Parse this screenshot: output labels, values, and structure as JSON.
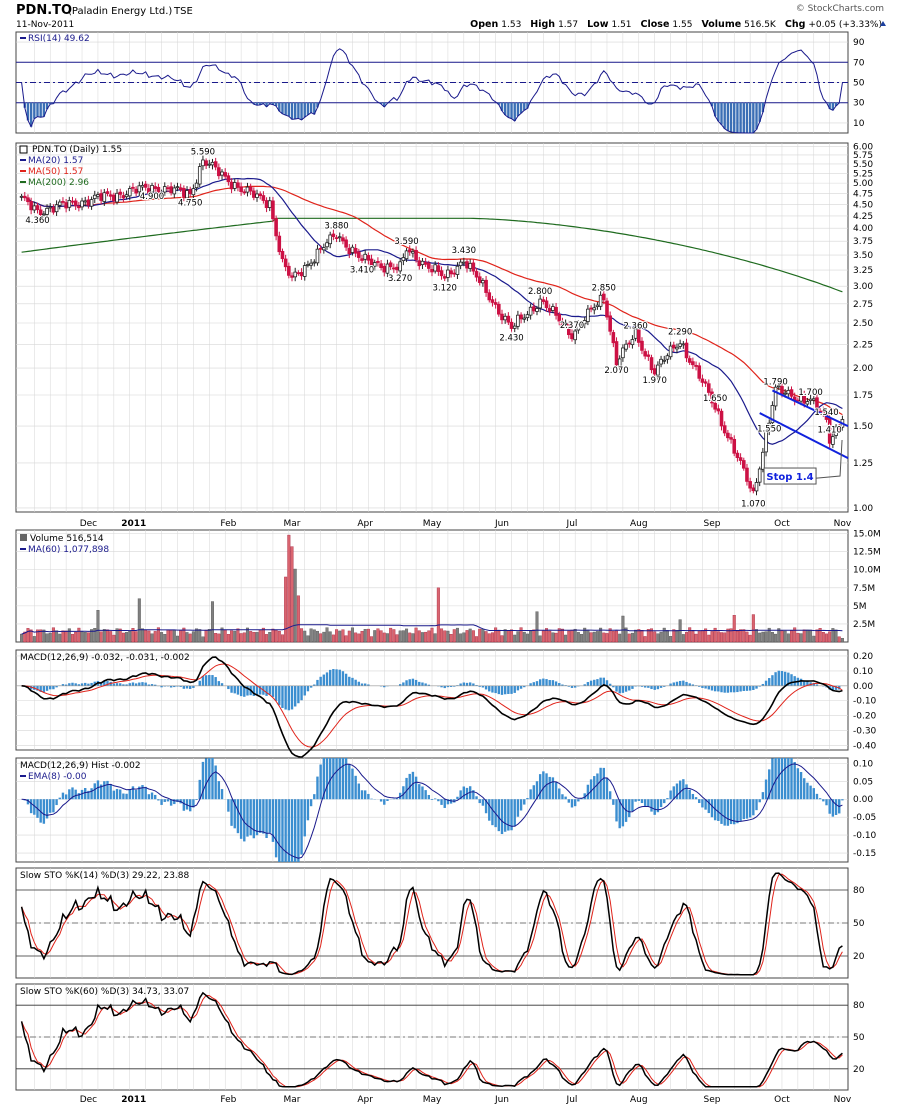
{
  "header": {
    "symbol": "PDN.TO",
    "company": "(Paladin Energy Ltd.)",
    "exchange": "TSE",
    "date": "11-Nov-2011",
    "brand": "© StockCharts.com",
    "stats": [
      {
        "label": "Open",
        "value": "1.53"
      },
      {
        "label": "High",
        "value": "1.57"
      },
      {
        "label": "Low",
        "value": "1.51"
      },
      {
        "label": "Close",
        "value": "1.55"
      },
      {
        "label": "Volume",
        "value": "516.5K"
      },
      {
        "label": "Chg",
        "value": "+0.05 (+3.33%)"
      }
    ]
  },
  "colors": {
    "up": "#222222",
    "down": "#cc1144",
    "ma20": "#1a1a8c",
    "ma50": "#e0241b",
    "ma200": "#1f6b1f",
    "hist": "#3b8ed0",
    "grid": "#d6d6d6",
    "channel": "#1122dd"
  },
  "x_months": [
    "Dec",
    "2011",
    "Feb",
    "Mar",
    "Apr",
    "May",
    "Jun",
    "Jul",
    "Aug",
    "Sep",
    "Oct",
    "Nov"
  ],
  "chart_data": [
    {
      "type": "line",
      "id": "rsi",
      "legend": [
        "RSI(14) 49.62"
      ],
      "yticks": [
        10,
        30,
        50,
        70,
        90
      ],
      "ylim": [
        0,
        100
      ],
      "reference_lines": [
        30,
        50,
        70
      ],
      "last_value": 49.62
    },
    {
      "type": "candlestick",
      "id": "price",
      "title": "PDN.TO (Daily) 1.55",
      "legend": [
        {
          "label": "MA(20) 1.57",
          "color": "ma20"
        },
        {
          "label": "MA(50) 1.57",
          "color": "ma50"
        },
        {
          "label": "MA(200) 2.96",
          "color": "ma200"
        }
      ],
      "yticks": [
        "6.00",
        "5.75",
        "5.50",
        "5.25",
        "5.00",
        "4.75",
        "4.50",
        "4.25",
        "4.00",
        "3.75",
        "3.50",
        "3.25",
        "3.00",
        "2.75",
        "2.50",
        "2.25",
        "2.00",
        "1.75",
        "1.50",
        "1.25",
        "1.00"
      ],
      "scale": "log",
      "ylim": [
        0.98,
        6.1
      ],
      "annotations": [
        "4.360",
        "5.590",
        "4.900",
        "4.750",
        "3.880",
        "3.410",
        "3.590",
        "3.270",
        "3.430",
        "3.120",
        "2.800",
        "2.430",
        "2.850",
        "2.370",
        "2.360",
        "2.070",
        "2.290",
        "1.970",
        "1.650",
        "1.070",
        "1.790",
        "1.700",
        "1.550",
        "1.540",
        "1.410"
      ],
      "annotation_points": [
        {
          "text": "4.360",
          "date": "Nov-23",
          "value": 4.36
        },
        {
          "text": "5.590",
          "date": "Feb-03",
          "value": 5.59
        },
        {
          "text": "4.900",
          "date": "Jan-12",
          "value": 4.9
        },
        {
          "text": "4.750",
          "date": "Jan-28",
          "value": 4.75
        },
        {
          "text": "3.880",
          "date": "Apr-04",
          "value": 3.88
        },
        {
          "text": "3.410",
          "date": "Apr-14",
          "value": 3.41
        },
        {
          "text": "3.590",
          "date": "May-04",
          "value": 3.59
        },
        {
          "text": "3.270",
          "date": "May-02",
          "value": 3.27
        },
        {
          "text": "3.430",
          "date": "May-30",
          "value": 3.43
        },
        {
          "text": "3.120",
          "date": "May-20",
          "value": 3.12
        },
        {
          "text": "2.800",
          "date": "Jul-01",
          "value": 2.8
        },
        {
          "text": "2.430",
          "date": "Jun-20",
          "value": 2.43
        },
        {
          "text": "2.850",
          "date": "Jul-29",
          "value": 2.85
        },
        {
          "text": "2.370",
          "date": "Jul-15",
          "value": 2.37
        },
        {
          "text": "2.360",
          "date": "Aug-12",
          "value": 2.36
        },
        {
          "text": "2.070",
          "date": "Aug-04",
          "value": 2.07
        },
        {
          "text": "2.290",
          "date": "Sep-01",
          "value": 2.29
        },
        {
          "text": "1.970",
          "date": "Aug-22",
          "value": 1.97
        },
        {
          "text": "1.650",
          "date": "Sep-16",
          "value": 1.65
        },
        {
          "text": "1.070",
          "date": "Oct-04",
          "value": 1.07
        },
        {
          "text": "1.790",
          "date": "Oct-13",
          "value": 1.79
        },
        {
          "text": "1.700",
          "date": "Oct-28",
          "value": 1.7
        },
        {
          "text": "1.550",
          "date": "Oct-11",
          "value": 1.55
        },
        {
          "text": "1.540",
          "date": "Nov-04",
          "value": 1.54
        },
        {
          "text": "1.410",
          "date": "Nov-07",
          "value": 1.41
        }
      ],
      "channel": {
        "upper": [
          [
            "Oct-12",
            1.79
          ],
          [
            "Nov-11",
            1.5
          ]
        ],
        "lower": [
          [
            "Oct-06",
            1.6
          ],
          [
            "Nov-11",
            1.28
          ]
        ]
      },
      "stop_label": "Stop 1.4",
      "stop": {
        "date": "Nov-09",
        "value": 1.4
      }
    },
    {
      "type": "bar",
      "id": "volume",
      "legend": [
        "Volume 516,514",
        "MA(60) 1,077,898"
      ],
      "yticks": [
        "2.5M",
        "5M",
        "7.5M",
        "10.0M",
        "12.5M",
        "15.0M"
      ],
      "ylim": [
        0,
        15.5
      ],
      "unit": "M",
      "spikes": [
        {
          "date": "Mar-14",
          "value": 14.8
        },
        {
          "date": "Mar-15",
          "value": 13.2
        },
        {
          "date": "Mar-16",
          "value": 10.1
        },
        {
          "date": "Mar-11",
          "value": 9.0
        },
        {
          "date": "Mar-17",
          "value": 6.4
        },
        {
          "date": "May-18",
          "value": 7.5
        },
        {
          "date": "Jan-06",
          "value": 6.0
        },
        {
          "date": "Feb-08",
          "value": 5.6
        },
        {
          "date": "Dec-20",
          "value": 4.4
        },
        {
          "date": "Jun-30",
          "value": 4.2
        },
        {
          "date": "Oct-04",
          "value": 3.8
        },
        {
          "date": "Sep-26",
          "value": 3.7
        },
        {
          "date": "Aug-08",
          "value": 3.6
        },
        {
          "date": "Sep-01",
          "value": 3.1
        }
      ]
    },
    {
      "type": "line",
      "id": "macd",
      "legend": [
        "MACD(12,26,9) -0.032, -0.031, -0.002"
      ],
      "yticks": [
        "0.20",
        "0.10",
        "0.00",
        "-0.10",
        "-0.20",
        "-0.30",
        "-0.40"
      ],
      "ylim": [
        -0.43,
        0.24
      ],
      "last": {
        "macd": -0.032,
        "signal": -0.031,
        "hist": -0.002
      }
    },
    {
      "type": "bar",
      "id": "macd_hist",
      "legend": [
        "MACD(12,26,9) Hist -0.002",
        "EMA(8) -0.00"
      ],
      "yticks": [
        "0.10",
        "0.05",
        "0.00",
        "-0.05",
        "-0.10",
        "-0.15"
      ],
      "ylim": [
        -0.175,
        0.115
      ],
      "last": {
        "hist": -0.002,
        "ema8": -0.0
      }
    },
    {
      "type": "line",
      "id": "sto14",
      "legend": [
        "Slow STO %K(14) %D(3) 29.22, 23.88"
      ],
      "yticks": [
        20,
        50,
        80
      ],
      "ylim": [
        0,
        100
      ],
      "reference_lines": [
        20,
        50,
        80
      ],
      "last": {
        "k": 29.22,
        "d": 23.88
      }
    },
    {
      "type": "line",
      "id": "sto60",
      "legend": [
        "Slow STO %K(60) %D(3) 34.73, 33.07"
      ],
      "yticks": [
        20,
        50,
        80
      ],
      "ylim": [
        0,
        100
      ],
      "reference_lines": [
        20,
        50,
        80
      ],
      "last": {
        "k": 34.73,
        "d": 33.07
      }
    }
  ]
}
